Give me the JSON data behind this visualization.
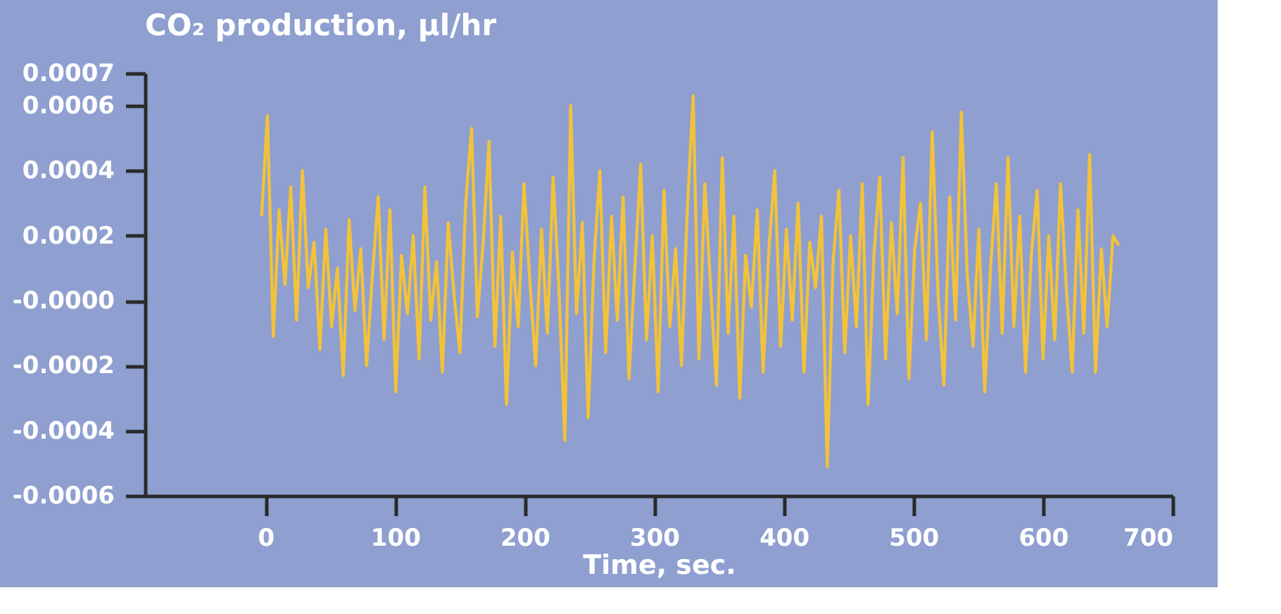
{
  "chart_data": {
    "type": "line",
    "title": "CO₂ production, µl/hr",
    "xlabel": "Time, sec.",
    "xlim": [
      -93,
      700
    ],
    "xticks": [
      0,
      100,
      200,
      300,
      400,
      500,
      600,
      700
    ],
    "ylim": [
      -0.0006,
      0.0007
    ],
    "yticks": [
      0.0007,
      0.0006,
      0.0004,
      0.0002,
      {
        "value": 0,
        "label": "-0.0000"
      },
      -0.0002,
      -0.0004,
      -0.0006
    ],
    "grid": false,
    "line_style": "solid",
    "x": [
      -3,
      1.5,
      6,
      10.5,
      15,
      19.5,
      24,
      28.5,
      33,
      37.5,
      42,
      46.5,
      51,
      55.5,
      60,
      64.5,
      69,
      73.5,
      78,
      82.5,
      87,
      91.5,
      96,
      100.5,
      105,
      109.5,
      114,
      118.5,
      123,
      127.5,
      132,
      136.5,
      141,
      145.5,
      150,
      154.5,
      159,
      163.5,
      168,
      172.5,
      177,
      181.5,
      186,
      190.5,
      195,
      199.5,
      204,
      208.5,
      213,
      217.5,
      222,
      226.5,
      231,
      235.5,
      240,
      244.5,
      249,
      253.5,
      258,
      262.5,
      267,
      271.5,
      276,
      280.5,
      285,
      289.5,
      294,
      298.5,
      303,
      307.5,
      312,
      316.5,
      321,
      325.5,
      330,
      334.5,
      339,
      343.5,
      348,
      352.5,
      357,
      361.5,
      366,
      370.5,
      375,
      379.5,
      384,
      388.5,
      393,
      397.5,
      402,
      406.5,
      411,
      415.5,
      420,
      424.5,
      429,
      433.5,
      438,
      442.5,
      447,
      451.5,
      456,
      460.5,
      465,
      469.5,
      474,
      478.5,
      483,
      487.5,
      492,
      496.5,
      501,
      505.5,
      510,
      514.5,
      519,
      523.5,
      528,
      532.5,
      537,
      541.5,
      546,
      550.5,
      555,
      559.5,
      564,
      568.5,
      573,
      577.5,
      582,
      586.5,
      591,
      595.5,
      600,
      604.5,
      609,
      613.5,
      618,
      622.5,
      627,
      631.5,
      636,
      640.5,
      645,
      649.5,
      654,
      658.5
    ],
    "series": [
      {
        "color": "#f2c23a",
        "values": [
          0.00026,
          0.00057,
          -0.00011,
          0.00028,
          5e-05,
          0.00035,
          -6e-05,
          0.0004,
          4e-05,
          0.00018,
          -0.00015,
          0.00022,
          -8e-05,
          0.0001,
          -0.00023,
          0.00025,
          -3e-05,
          0.00016,
          -0.0002,
          8e-05,
          0.00032,
          -0.00012,
          0.00028,
          -0.00028,
          0.00014,
          -4e-05,
          0.0002,
          -0.00018,
          0.00035,
          -6e-05,
          0.00012,
          -0.00022,
          0.00024,
          2e-05,
          -0.00016,
          0.0003,
          0.00053,
          -5e-05,
          0.00018,
          0.00049,
          -0.00014,
          0.00026,
          -0.00032,
          0.00015,
          -8e-05,
          0.00036,
          6e-05,
          -0.0002,
          0.00022,
          -0.0001,
          0.00038,
          3e-05,
          -0.00043,
          0.0006,
          -4e-05,
          0.00024,
          -0.00036,
          0.00012,
          0.0004,
          -0.00016,
          0.00026,
          -6e-05,
          0.00032,
          -0.00024,
          0.0001,
          0.00042,
          -0.00012,
          0.0002,
          -0.00028,
          0.00034,
          -8e-05,
          0.00016,
          -0.0002,
          0.00028,
          0.00063,
          -0.00018,
          0.00036,
          4e-05,
          -0.00026,
          0.00044,
          -0.0001,
          0.00026,
          -0.0003,
          0.00014,
          -2e-05,
          0.00028,
          -0.00022,
          0.00016,
          0.0004,
          -0.00014,
          0.00022,
          -6e-05,
          0.0003,
          -0.00022,
          0.00018,
          4e-05,
          0.00026,
          -0.00051,
          0.00012,
          0.00034,
          -0.00016,
          0.0002,
          -8e-05,
          0.00036,
          -0.00032,
          0.00014,
          0.00038,
          -0.00018,
          0.00024,
          -4e-05,
          0.00044,
          -0.00024,
          0.00016,
          0.0003,
          -0.00012,
          0.00052,
          2e-05,
          -0.00026,
          0.00032,
          -6e-05,
          0.00058,
          8e-05,
          -0.00014,
          0.00022,
          -0.00028,
          0.0001,
          0.00036,
          -0.0001,
          0.00044,
          -8e-05,
          0.00026,
          -0.00022,
          0.00014,
          0.00034,
          -0.00018,
          0.0002,
          -0.00012,
          0.00036,
          4e-05,
          -0.00022,
          0.00028,
          -0.0001,
          0.00045,
          -0.00022,
          0.00016,
          -8e-05,
          0.0002,
          0.00017
        ]
      }
    ]
  }
}
